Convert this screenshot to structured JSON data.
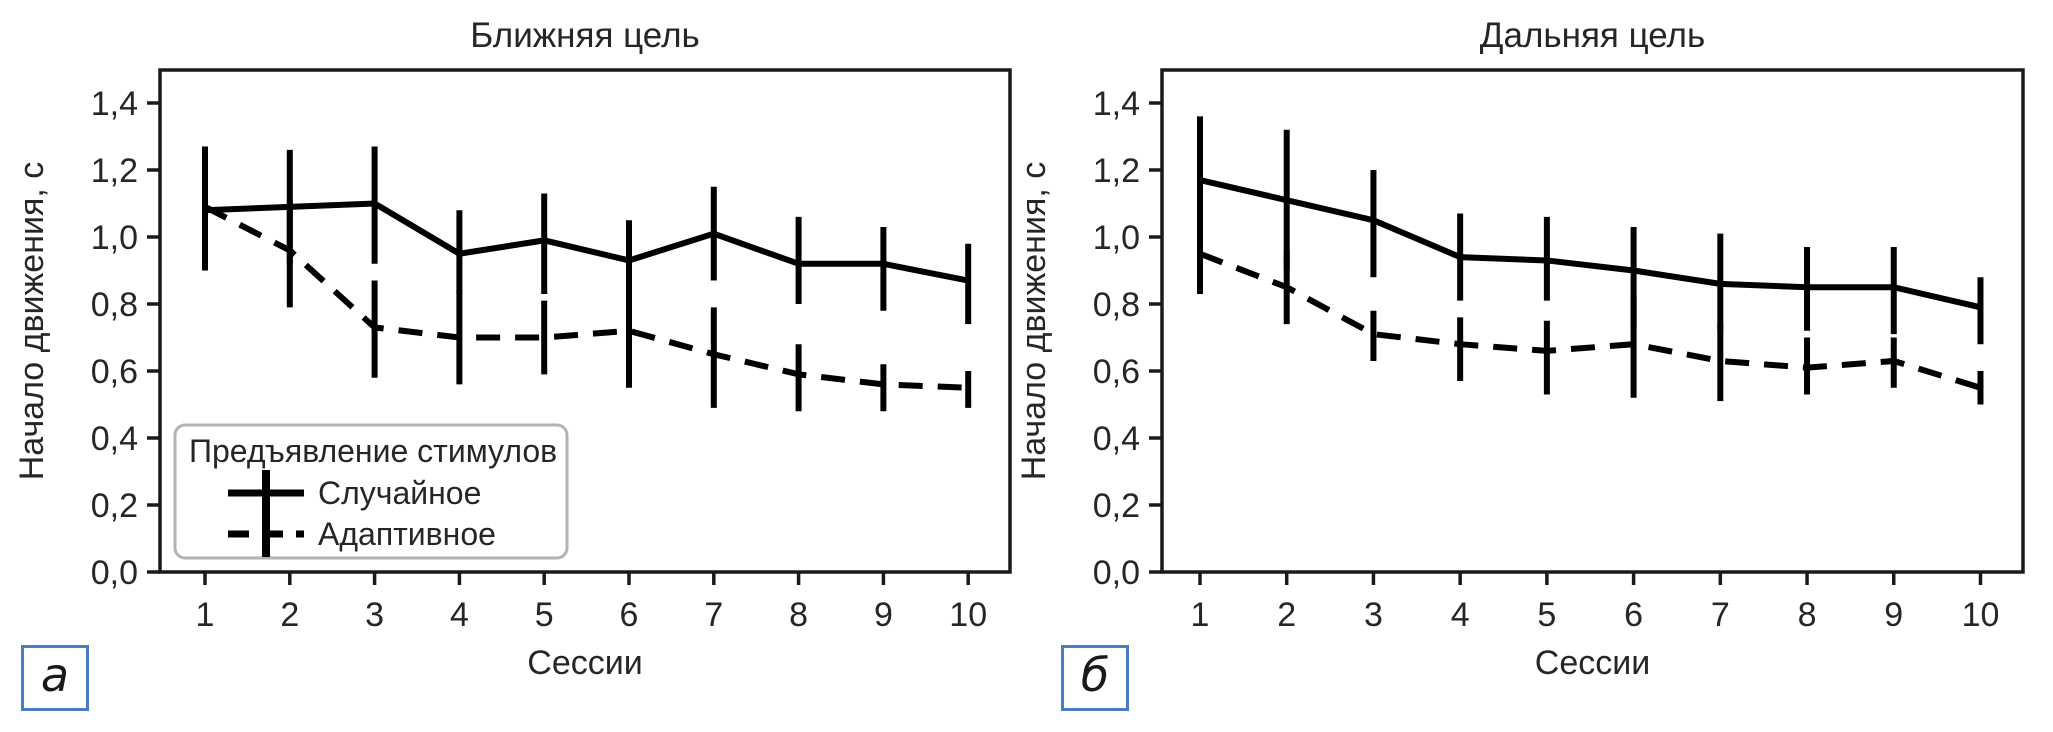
{
  "figure": {
    "background": "#ffffff",
    "line_color": "#000000",
    "text_color": "#262626",
    "spine_color": "#1a1a1a",
    "panel_box_border": "#4a7cc4",
    "legend_border": "#b3b3b3"
  },
  "chart_data": [
    {
      "type": "line",
      "title": "Ближняя цель",
      "panel_label": "а",
      "xlabel": "Сессии",
      "ylabel": "Начало движения, с",
      "x": [
        1,
        2,
        3,
        4,
        5,
        6,
        7,
        8,
        9,
        10
      ],
      "x_tick_labels": [
        "1",
        "2",
        "3",
        "4",
        "5",
        "6",
        "7",
        "8",
        "9",
        "10"
      ],
      "y_tick_values": [
        0.0,
        0.2,
        0.4,
        0.6,
        0.8,
        1.0,
        1.2,
        1.4
      ],
      "y_tick_labels": [
        "0,0",
        "0,2",
        "0,4",
        "0,6",
        "0,8",
        "1,0",
        "1,2",
        "1,4"
      ],
      "ylim": [
        0,
        1.5
      ],
      "grid": false,
      "legend": {
        "visible": true,
        "title": "Предъявление стимулов",
        "position": "lower left"
      },
      "series": [
        {
          "name": "Случайное",
          "line_style": "solid",
          "color": "#000000",
          "values": [
            1.08,
            1.09,
            1.1,
            0.95,
            0.99,
            0.93,
            1.01,
            0.92,
            0.92,
            0.87
          ],
          "err_low": [
            0.9,
            0.92,
            0.92,
            0.83,
            0.83,
            0.8,
            0.87,
            0.8,
            0.78,
            0.74
          ],
          "err_high": [
            1.25,
            1.26,
            1.27,
            1.08,
            1.13,
            1.05,
            1.15,
            1.06,
            1.03,
            0.98
          ]
        },
        {
          "name": "Адаптивное",
          "line_style": "dashed",
          "color": "#000000",
          "values": [
            1.09,
            0.96,
            0.73,
            0.7,
            0.7,
            0.72,
            0.65,
            0.59,
            0.56,
            0.55
          ],
          "err_low": [
            0.93,
            0.79,
            0.58,
            0.56,
            0.59,
            0.55,
            0.49,
            0.48,
            0.48,
            0.49
          ],
          "err_high": [
            1.27,
            1.11,
            0.87,
            0.84,
            0.81,
            0.87,
            0.79,
            0.68,
            0.62,
            0.6
          ]
        }
      ]
    },
    {
      "type": "line",
      "title": "Дальняя цель",
      "panel_label": "б",
      "xlabel": "Сессии",
      "ylabel": "Начало движения, с",
      "x": [
        1,
        2,
        3,
        4,
        5,
        6,
        7,
        8,
        9,
        10
      ],
      "x_tick_labels": [
        "1",
        "2",
        "3",
        "4",
        "5",
        "6",
        "7",
        "8",
        "9",
        "10"
      ],
      "y_tick_values": [
        0.0,
        0.2,
        0.4,
        0.6,
        0.8,
        1.0,
        1.2,
        1.4
      ],
      "y_tick_labels": [
        "0,0",
        "0,2",
        "0,4",
        "0,6",
        "0,8",
        "1,0",
        "1,2",
        "1,4"
      ],
      "ylim": [
        0,
        1.5
      ],
      "grid": false,
      "legend": {
        "visible": false,
        "title": "Предъявление стимулов",
        "position": "lower left"
      },
      "series": [
        {
          "name": "Случайное",
          "line_style": "solid",
          "color": "#000000",
          "values": [
            1.17,
            1.11,
            1.05,
            0.94,
            0.93,
            0.9,
            0.86,
            0.85,
            0.85,
            0.79
          ],
          "err_low": [
            0.98,
            0.9,
            0.88,
            0.81,
            0.81,
            0.73,
            0.72,
            0.72,
            0.71,
            0.68
          ],
          "err_high": [
            1.36,
            1.32,
            1.2,
            1.07,
            1.06,
            1.03,
            1.01,
            0.97,
            0.97,
            0.88
          ]
        },
        {
          "name": "Адаптивное",
          "line_style": "dashed",
          "color": "#000000",
          "values": [
            0.95,
            0.85,
            0.71,
            0.68,
            0.66,
            0.68,
            0.63,
            0.61,
            0.63,
            0.55
          ],
          "err_low": [
            0.83,
            0.74,
            0.63,
            0.57,
            0.53,
            0.52,
            0.51,
            0.53,
            0.55,
            0.5
          ],
          "err_high": [
            1.05,
            0.96,
            0.78,
            0.76,
            0.75,
            0.82,
            0.74,
            0.7,
            0.7,
            0.6
          ]
        }
      ]
    }
  ]
}
